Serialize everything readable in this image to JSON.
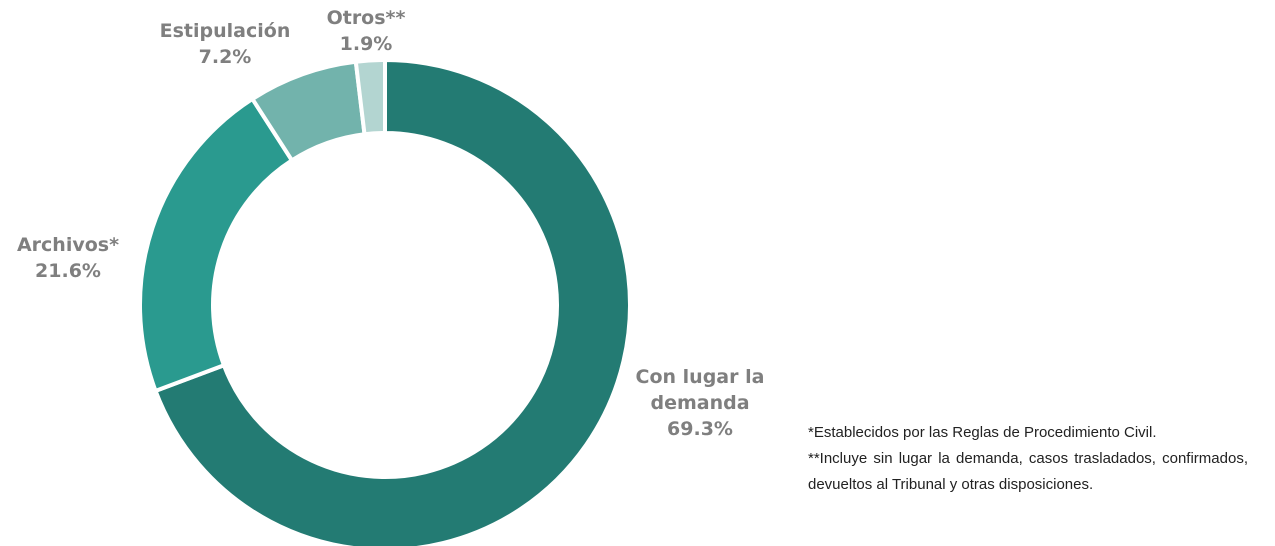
{
  "chart_data": {
    "type": "donut",
    "categories": [
      "Con lugar la demanda",
      "Archivos*",
      "Estipulación",
      "Otros**"
    ],
    "values": [
      69.3,
      21.6,
      7.2,
      1.9
    ],
    "value_labels": [
      "69.3%",
      "21.6%",
      "7.2%",
      "1.9%"
    ],
    "colors": [
      "#237b73",
      "#2a9a8f",
      "#72b3ac",
      "#b3d5d1"
    ],
    "notes": [
      "*Establecidos por las Reglas de Procedimiento Civil.",
      "**Incluye sin lugar la demanda, casos trasladados, confirmados, devueltos al Tribunal y otras disposiciones."
    ]
  }
}
